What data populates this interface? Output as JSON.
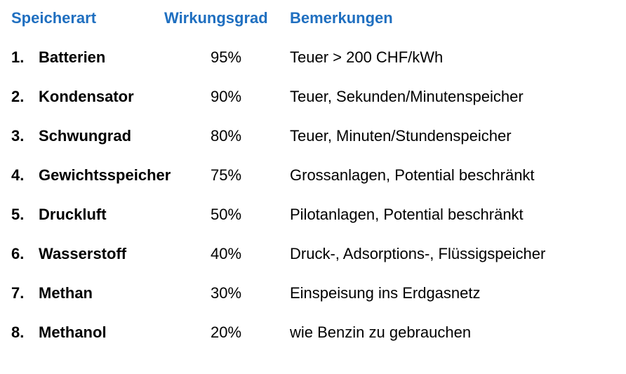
{
  "header": {
    "type_label": "Speicherart",
    "efficiency_label": "Wirkungsgrad",
    "notes_label": "Bemerkungen"
  },
  "colors": {
    "header_text": "#1f6fc0",
    "body_text": "#000000",
    "background": "#ffffff"
  },
  "rows": [
    {
      "number": "1.",
      "name": "Batterien",
      "efficiency": "95%",
      "note": "Teuer > 200 CHF/kWh"
    },
    {
      "number": "2.",
      "name": "Kondensator",
      "efficiency": "90%",
      "note": "Teuer, Sekunden/Minutenspeicher"
    },
    {
      "number": "3.",
      "name": "Schwungrad",
      "efficiency": "80%",
      "note": "Teuer, Minuten/Stundenspeicher"
    },
    {
      "number": "4.",
      "name": "Gewichtsspeicher",
      "efficiency": "75%",
      "note": "Grossanlagen, Potential beschränkt"
    },
    {
      "number": "5.",
      "name": "Druckluft",
      "efficiency": "50%",
      "note": "Pilotanlagen, Potential beschränkt"
    },
    {
      "number": "6.",
      "name": "Wasserstoff",
      "efficiency": "40%",
      "note": "Druck-, Adsorptions-, Flüssigspeicher"
    },
    {
      "number": "7.",
      "name": "Methan",
      "efficiency": "30%",
      "note": "Einspeisung ins Erdgasnetz"
    },
    {
      "number": "8.",
      "name": "Methanol",
      "efficiency": "20%",
      "note": "wie Benzin zu gebrauchen"
    }
  ]
}
